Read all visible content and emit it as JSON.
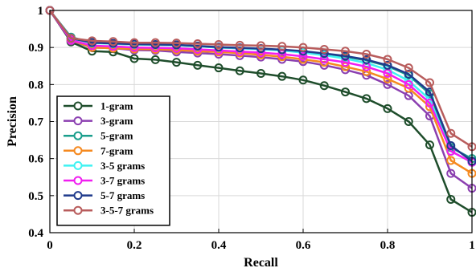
{
  "chart_data": {
    "type": "line",
    "xlabel": "Recall",
    "ylabel": "Precision",
    "xlim": [
      0,
      1
    ],
    "ylim": [
      0.4,
      1
    ],
    "xticks": [
      0,
      0.2,
      0.4,
      0.6,
      0.8,
      1
    ],
    "xtick_labels": [
      "0",
      "0.2",
      "0.4",
      "0.6",
      "0.8",
      "1"
    ],
    "yticks": [
      0.4,
      0.5,
      0.6,
      0.7,
      0.8,
      0.9,
      1
    ],
    "ytick_labels": [
      "0.4",
      "0.5",
      "0.6",
      "0.7",
      "0.8",
      "0.9",
      "1"
    ],
    "grid": true,
    "legend_position": "bottom-left",
    "x": [
      0,
      0.05,
      0.1,
      0.15,
      0.2,
      0.25,
      0.3,
      0.35,
      0.4,
      0.45,
      0.5,
      0.55,
      0.6,
      0.65,
      0.7,
      0.75,
      0.8,
      0.85,
      0.9,
      0.95,
      1.0
    ],
    "series": [
      {
        "name": "1-gram",
        "color": "#1e4d2b",
        "values": [
          1.0,
          0.915,
          0.89,
          0.888,
          0.87,
          0.867,
          0.86,
          0.852,
          0.845,
          0.837,
          0.83,
          0.822,
          0.812,
          0.797,
          0.78,
          0.762,
          0.735,
          0.7,
          0.637,
          0.49,
          0.455
        ]
      },
      {
        "name": "3-gram",
        "color": "#8b3fb0",
        "values": [
          1.0,
          0.918,
          0.9,
          0.898,
          0.893,
          0.892,
          0.888,
          0.885,
          0.882,
          0.878,
          0.874,
          0.868,
          0.862,
          0.852,
          0.84,
          0.825,
          0.8,
          0.77,
          0.715,
          0.56,
          0.52
        ]
      },
      {
        "name": "5-gram",
        "color": "#1a9e8c",
        "values": [
          1.0,
          0.928,
          0.913,
          0.91,
          0.908,
          0.907,
          0.906,
          0.903,
          0.9,
          0.898,
          0.896,
          0.893,
          0.888,
          0.882,
          0.875,
          0.865,
          0.85,
          0.825,
          0.775,
          0.63,
          0.6
        ]
      },
      {
        "name": "7-gram",
        "color": "#f5891f",
        "values": [
          1.0,
          0.92,
          0.9,
          0.898,
          0.896,
          0.895,
          0.893,
          0.89,
          0.888,
          0.885,
          0.88,
          0.875,
          0.868,
          0.86,
          0.848,
          0.835,
          0.815,
          0.79,
          0.74,
          0.595,
          0.56
        ]
      },
      {
        "name": "3-5 grams",
        "color": "#3ff2f2",
        "values": [
          1.0,
          0.925,
          0.912,
          0.91,
          0.908,
          0.907,
          0.906,
          0.903,
          0.9,
          0.898,
          0.895,
          0.892,
          0.886,
          0.879,
          0.87,
          0.858,
          0.84,
          0.81,
          0.76,
          0.62,
          0.59
        ]
      },
      {
        "name": "3-7 grams",
        "color": "#f01ef0",
        "values": [
          1.0,
          0.92,
          0.905,
          0.903,
          0.9,
          0.899,
          0.898,
          0.895,
          0.892,
          0.889,
          0.886,
          0.882,
          0.876,
          0.868,
          0.86,
          0.848,
          0.83,
          0.8,
          0.75,
          0.62,
          0.59
        ]
      },
      {
        "name": "5-7 grams",
        "color": "#1f3a8c",
        "values": [
          1.0,
          0.925,
          0.913,
          0.911,
          0.909,
          0.908,
          0.907,
          0.904,
          0.901,
          0.899,
          0.897,
          0.894,
          0.89,
          0.884,
          0.877,
          0.867,
          0.852,
          0.828,
          0.78,
          0.635,
          0.593
        ]
      },
      {
        "name": "3-5-7 grams",
        "color": "#b85c5c",
        "values": [
          1.0,
          0.925,
          0.918,
          0.916,
          0.913,
          0.913,
          0.912,
          0.91,
          0.908,
          0.906,
          0.905,
          0.903,
          0.9,
          0.895,
          0.89,
          0.882,
          0.868,
          0.845,
          0.805,
          0.668,
          0.632
        ]
      }
    ]
  }
}
